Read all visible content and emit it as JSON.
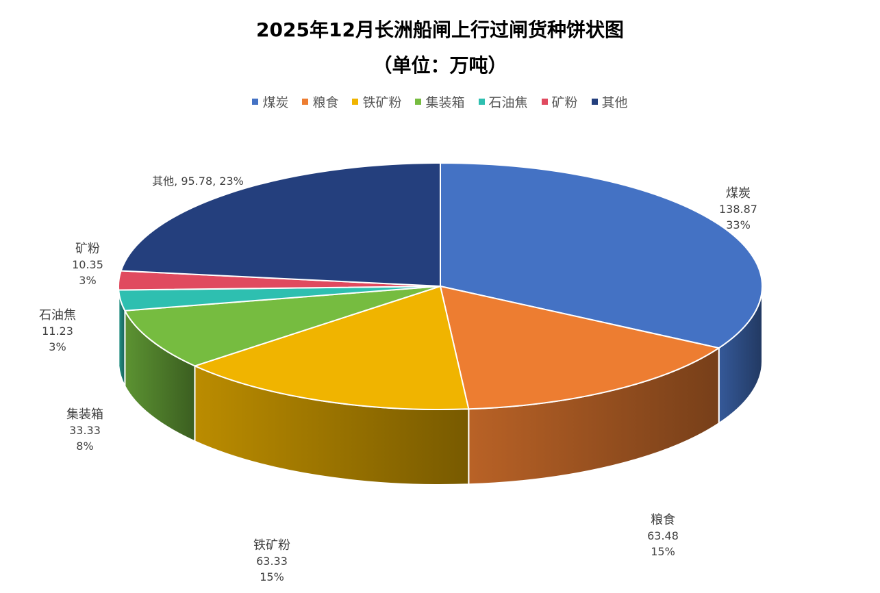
{
  "chart_data": {
    "type": "pie",
    "title": "2025年12月长洲船闸上行过闸货种饼状图",
    "subtitle": "（单位：万吨）",
    "legend_position": "top",
    "slices": [
      {
        "name": "煤炭",
        "value": 138.87,
        "percent": "33%",
        "color": "#4472C4"
      },
      {
        "name": "粮食",
        "value": 63.48,
        "percent": "15%",
        "color": "#ED7D31"
      },
      {
        "name": "铁矿粉",
        "value": 63.33,
        "percent": "15%",
        "color": "#F0B400"
      },
      {
        "name": "集装箱",
        "value": 33.33,
        "percent": "8%",
        "color": "#76BC40"
      },
      {
        "name": "石油焦",
        "value": 11.23,
        "percent": "3%",
        "color": "#2EBFB0"
      },
      {
        "name": "矿粉",
        "value": 10.35,
        "percent": "3%",
        "color": "#E04A5F"
      },
      {
        "name": "其他",
        "value": 95.78,
        "percent": "23%",
        "color": "#243F7D"
      }
    ]
  }
}
